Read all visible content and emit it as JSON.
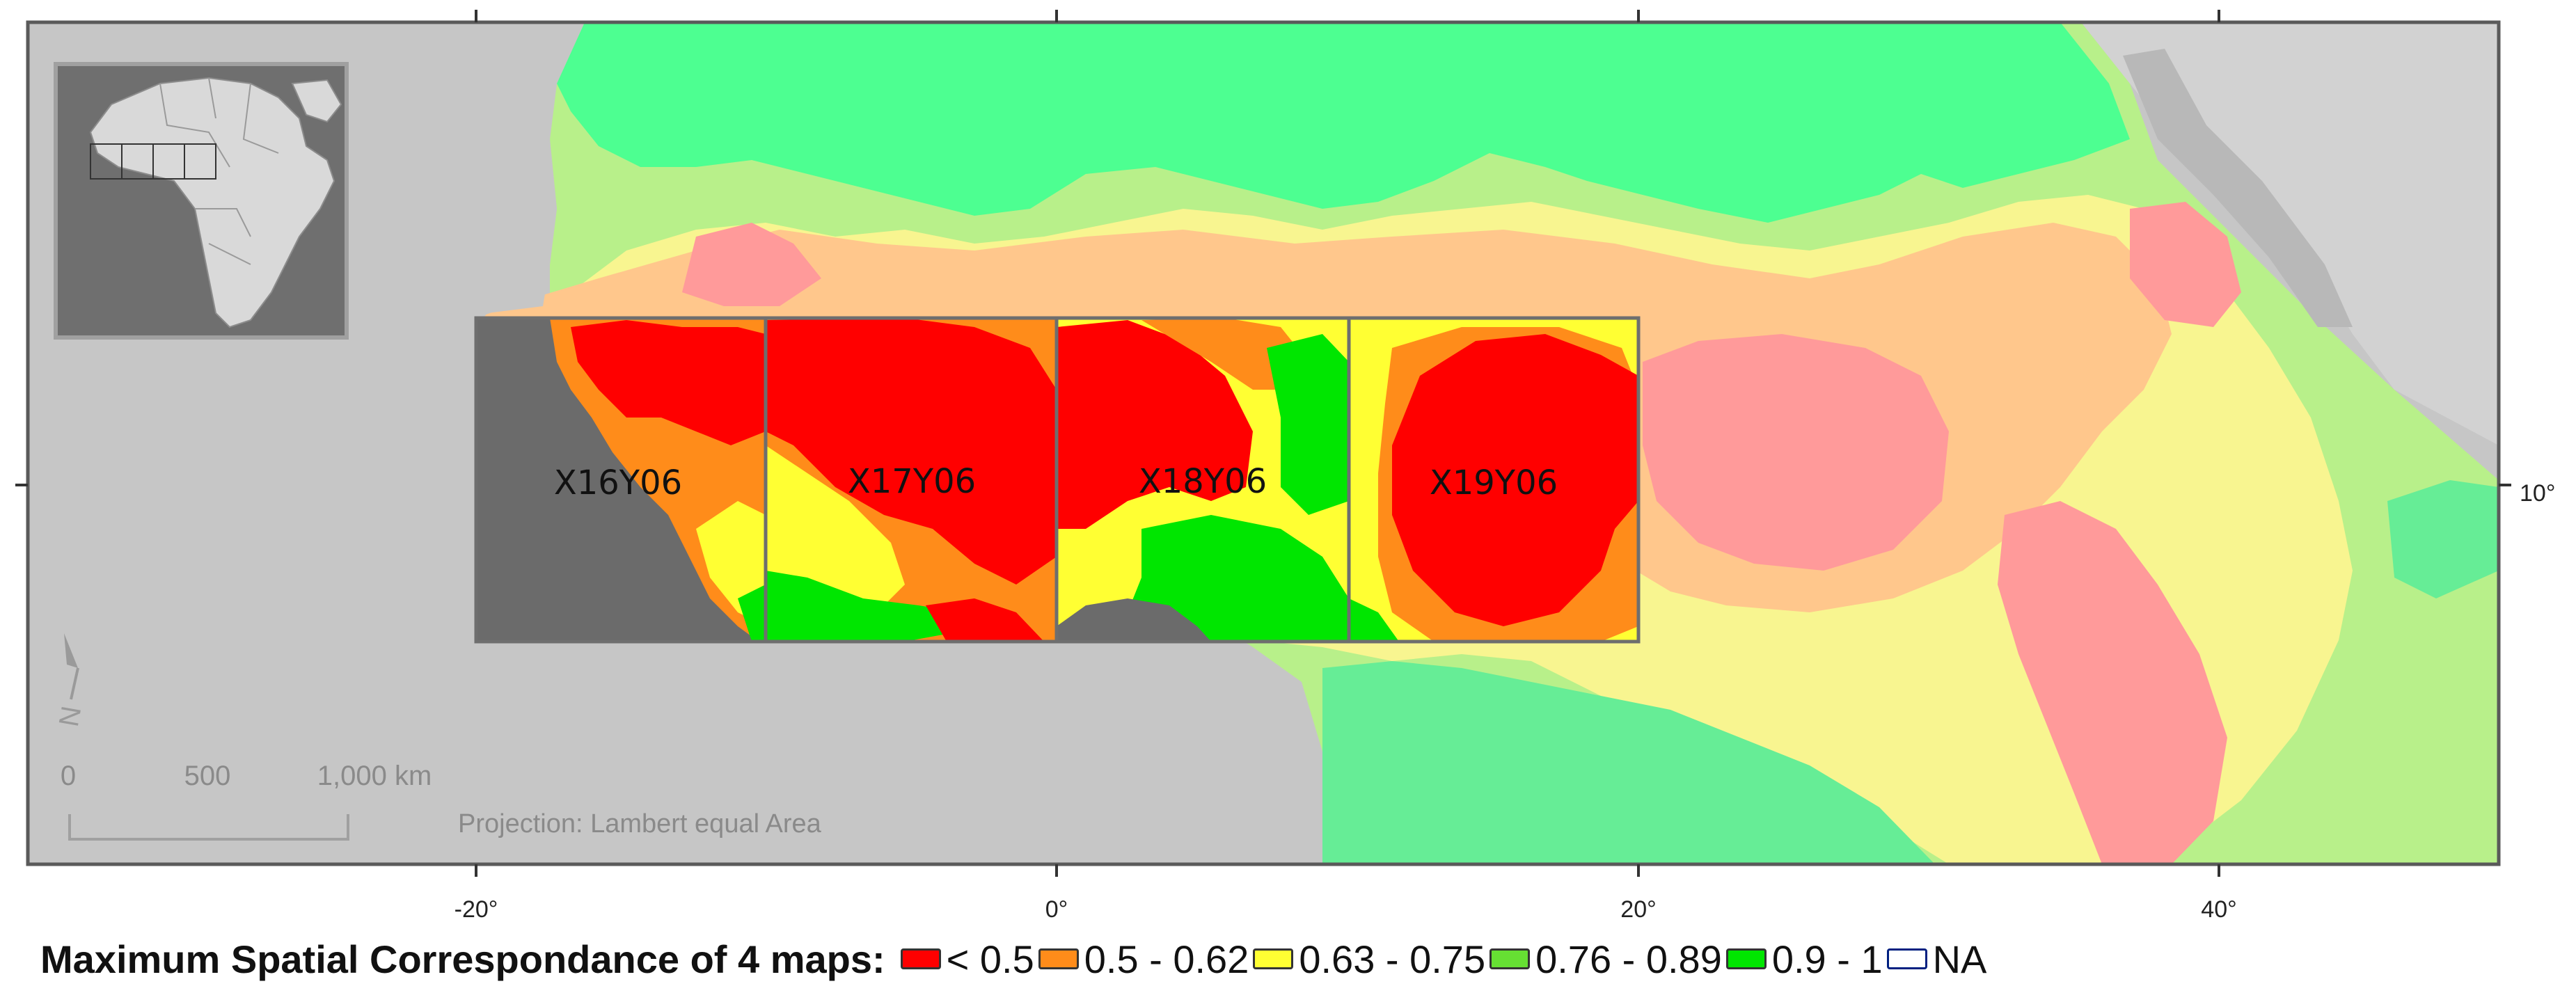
{
  "map": {
    "tiles": [
      {
        "id": "X16Y06"
      },
      {
        "id": "X17Y06"
      },
      {
        "id": "X18Y06"
      },
      {
        "id": "X19Y06"
      }
    ],
    "lon_ticks": [
      "-20°",
      "0°",
      "20°",
      "40°"
    ],
    "lat_ticks": [
      "10°"
    ],
    "scale_bar": {
      "labels": [
        "0",
        "500",
        "1,000 km"
      ]
    },
    "projection_note": "Projection: Lambert equal Area",
    "north_arrow_label": "N",
    "inset": {
      "name": "Africa locator"
    }
  },
  "legend": {
    "title": "Maximum Spatial Correspondance of 4 maps:",
    "items": [
      {
        "label": "< 0.5",
        "color": "#ff0000"
      },
      {
        "label": "0.5 - 0.62",
        "color": "#ff8c1a"
      },
      {
        "label": "0.63 - 0.75",
        "color": "#ffff33"
      },
      {
        "label": "0.76 - 0.89",
        "color": "#66e033"
      },
      {
        "label": "0.9 - 1",
        "color": "#00e600"
      },
      {
        "label": "NA",
        "color": "#ffffff",
        "border": "#002080"
      }
    ]
  },
  "colors": {
    "ocean": "#c6c6c6",
    "land_outside": "#d2d2d2",
    "tile_na": "#6b6b6b",
    "sahara_green": "#4dff91",
    "pale_green": "#b8f08a",
    "pale_yellow": "#f8f590",
    "pale_orange": "#ffc78c",
    "pale_red": "#ff9a9a",
    "savanna_green": "#66ed96"
  }
}
